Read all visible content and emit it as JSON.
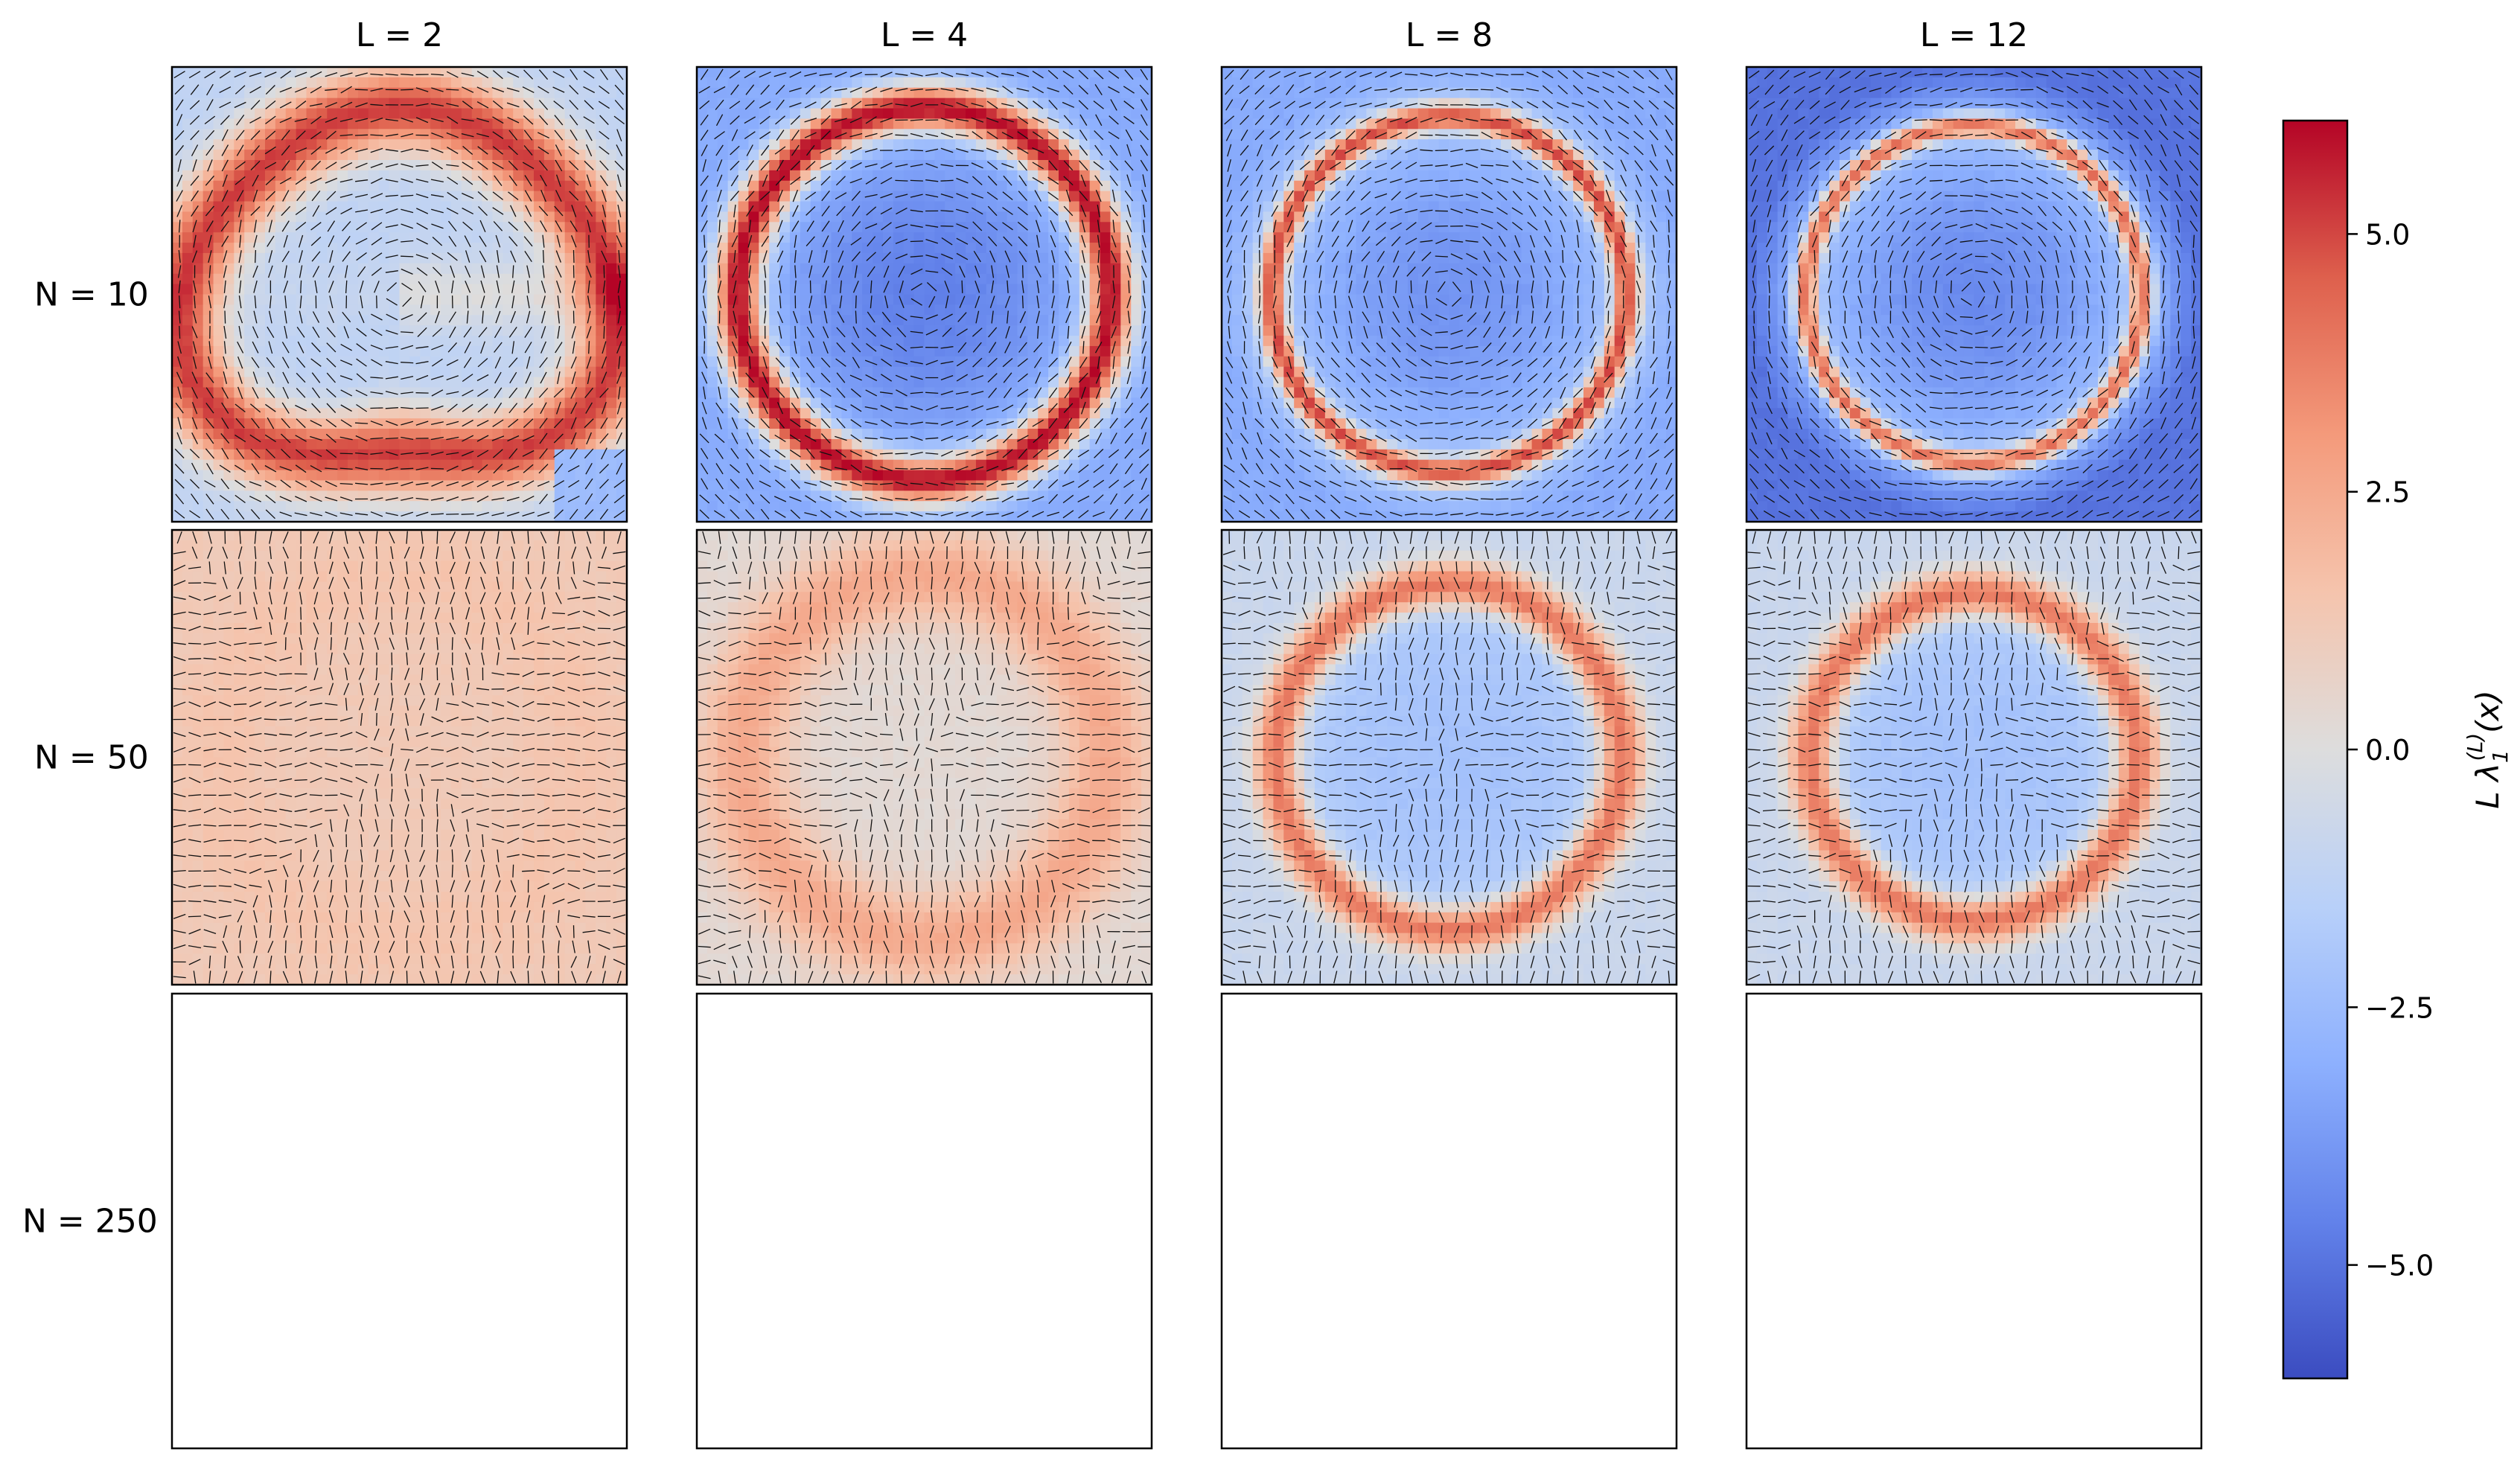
{
  "chart_data": {
    "type": "heatmap",
    "title": "",
    "grid_columns": [
      {
        "label": "L = 2",
        "L": 2
      },
      {
        "label": "L = 4",
        "L": 4
      },
      {
        "label": "L = 8",
        "L": 8
      },
      {
        "label": "L = 12",
        "L": 12
      }
    ],
    "grid_rows": [
      {
        "label": "N = 10",
        "N": 10,
        "filled": true
      },
      {
        "label": "N = 50",
        "N": 50,
        "filled": true
      },
      {
        "label": "N = 250",
        "N": 250,
        "filled": false
      }
    ],
    "panel_patterns": [
      [
        "distorted-ring",
        "ring",
        "ring",
        "ring"
      ],
      [
        "diffuse-ring",
        "diffuse-ring",
        "ring",
        "ring"
      ],
      [
        "empty",
        "empty",
        "empty",
        "empty"
      ]
    ],
    "overlay": "line-segment direction field",
    "colorbar": {
      "label_main": "L λ",
      "label_sup": "(L)",
      "label_sub": "1",
      "label_tail": "(x)",
      "colormap": "coolwarm",
      "vmin": -6.1,
      "vmax": 6.1,
      "ticks": [
        5.0,
        2.5,
        0.0,
        -2.5,
        -5.0
      ],
      "tick_labels": [
        "5.0",
        "2.5",
        "0.0",
        "−2.5",
        "−5.0"
      ]
    }
  }
}
